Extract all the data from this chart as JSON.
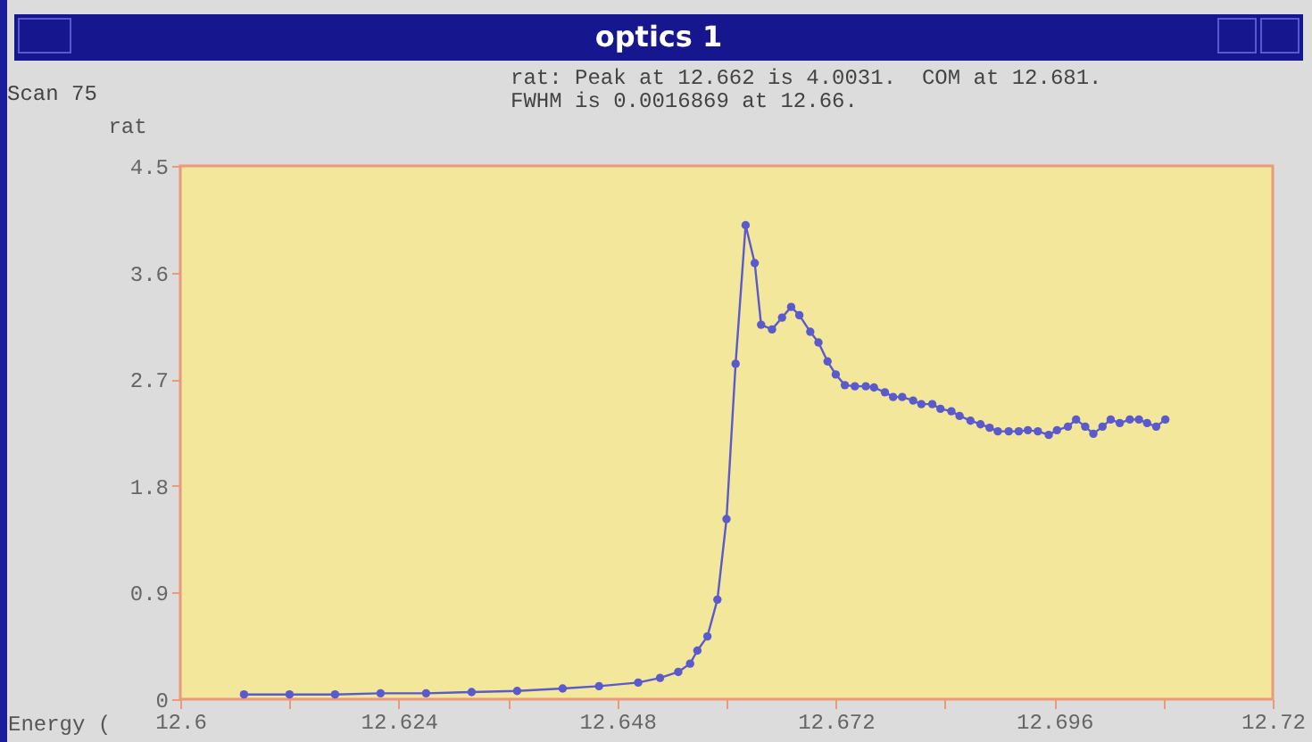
{
  "chart_data": {
    "type": "line",
    "title": "optics 1",
    "subtitle": "Scan 75",
    "annotations": [
      "rat: Peak at 12.662 is 4.0031.  COM at 12.681.",
      "FWHM is 0.0016869 at 12.66."
    ],
    "xlabel": "Energy (",
    "ylabel": "rat",
    "xlim": [
      12.6,
      12.72
    ],
    "xticks": [
      12.6,
      {
        "value": 12.612,
        "label": null
      },
      12.624,
      {
        "value": 12.636,
        "label": null
      },
      12.648,
      {
        "value": 12.66,
        "label": null
      },
      12.672,
      {
        "value": 12.684,
        "label": null
      },
      12.696,
      {
        "value": 12.708,
        "label": null
      },
      12.72
    ],
    "ylim": [
      0,
      4.5
    ],
    "yticks": [
      0,
      0.9,
      1.8,
      2.7,
      3.6,
      4.5
    ],
    "grid": false,
    "marker": "circle",
    "line_style": "solid",
    "series": [
      {
        "color": "#5a5acd",
        "x": [
          12.607,
          12.612,
          12.617,
          12.622,
          12.627,
          12.632,
          12.637,
          12.642,
          12.646,
          12.6503,
          12.6527,
          12.6547,
          12.656,
          12.6568,
          12.6579,
          12.659,
          12.66,
          12.661,
          12.6621,
          12.6631,
          12.6638,
          12.665,
          12.6661,
          12.6671,
          12.668,
          12.6692,
          12.6701,
          12.6711,
          12.672,
          12.673,
          12.6741,
          12.6753,
          12.6762,
          12.6774,
          12.6783,
          12.6793,
          12.6805,
          12.6814,
          12.6826,
          12.6835,
          12.6847,
          12.6856,
          12.6868,
          12.6879,
          12.6889,
          12.6898,
          12.691,
          12.6921,
          12.6931,
          12.6942,
          12.6954,
          12.6963,
          12.6975,
          12.6984,
          12.6994,
          12.7003,
          12.7013,
          12.7022,
          12.7032,
          12.7043,
          12.7053,
          12.7062,
          12.7072,
          12.7082
        ],
        "values": [
          0.04,
          0.04,
          0.04,
          0.05,
          0.05,
          0.06,
          0.07,
          0.09,
          0.11,
          0.14,
          0.18,
          0.23,
          0.3,
          0.41,
          0.53,
          0.84,
          1.52,
          2.83,
          4.0,
          3.68,
          3.16,
          3.12,
          3.22,
          3.31,
          3.24,
          3.1,
          3.01,
          2.85,
          2.74,
          2.65,
          2.64,
          2.64,
          2.63,
          2.59,
          2.55,
          2.55,
          2.52,
          2.49,
          2.49,
          2.45,
          2.43,
          2.39,
          2.35,
          2.32,
          2.29,
          2.26,
          2.26,
          2.26,
          2.27,
          2.26,
          2.23,
          2.27,
          2.3,
          2.36,
          2.3,
          2.24,
          2.3,
          2.36,
          2.33,
          2.36,
          2.36,
          2.33,
          2.3,
          2.36
        ]
      }
    ]
  }
}
